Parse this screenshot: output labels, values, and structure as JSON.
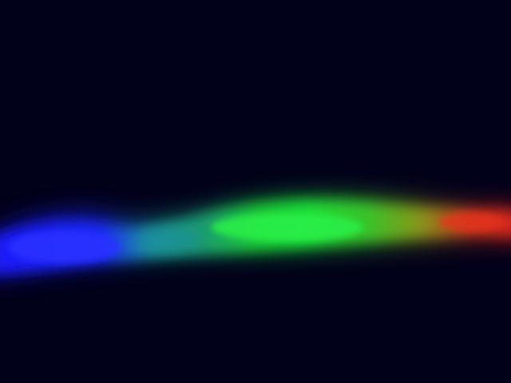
{
  "photo": {
    "subject": "spectrum-light-band",
    "colors": {
      "background": "#02011a",
      "blue": "#1a1cff",
      "cyan": "#1a9a9a",
      "green": "#1fe63a",
      "yellow": "#8a9a1a",
      "red": "#e0281a"
    }
  }
}
